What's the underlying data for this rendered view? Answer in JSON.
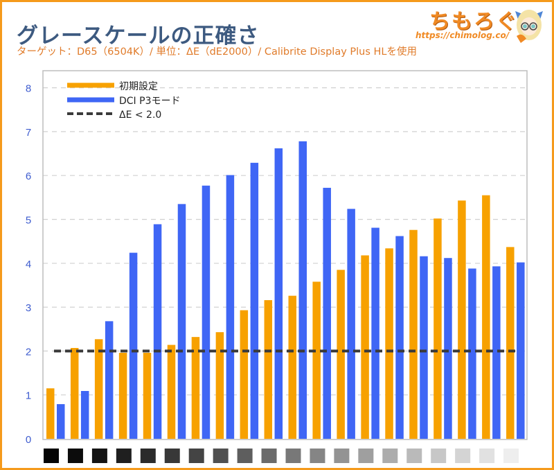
{
  "header": {
    "title": "グレースケールの正確さ",
    "subtitle": "ターゲット：D65（6504K）/ 単位：ΔE（dE2000）/ Calibrite Display Plus HLを使用"
  },
  "logo": {
    "text": "ちもろぐ",
    "url": "https://chimolog.co/"
  },
  "colors": {
    "series1": "#f7a100",
    "series2": "#3f66f5",
    "threshold": "#3a3a3a",
    "frame": "#f59a1b",
    "axis_text": "#3e5ccf"
  },
  "chart_data": {
    "type": "bar",
    "title": "グレースケールの正確さ",
    "subtitle": "ターゲット：D65（6504K）/ 単位：ΔE（dE2000）/ Calibrite Display Plus HLを使用",
    "xlabel": "",
    "ylabel": "",
    "ylim": [
      0,
      8
    ],
    "yticks": [
      0,
      1,
      2,
      3,
      4,
      5,
      6,
      7,
      8
    ],
    "grid": true,
    "legend_position": "top-left",
    "categories": [
      "0%",
      "5%",
      "10%",
      "15%",
      "20%",
      "25%",
      "30%",
      "35%",
      "40%",
      "45%",
      "50%",
      "55%",
      "60%",
      "65%",
      "70%",
      "75%",
      "80%",
      "85%",
      "90%",
      "95%"
    ],
    "category_swatches": [
      "#050505",
      "#0c0c0c",
      "#141414",
      "#1f1f1f",
      "#2b2b2b",
      "#383838",
      "#444444",
      "#505050",
      "#5e5e5e",
      "#6b6b6b",
      "#787878",
      "#858585",
      "#939393",
      "#9f9f9f",
      "#acacac",
      "#bababa",
      "#c7c7c7",
      "#d4d4d4",
      "#e1e1e1",
      "#eeeeee"
    ],
    "series": [
      {
        "name": "初期設定",
        "values": [
          1.15,
          2.07,
          2.27,
          1.96,
          1.96,
          2.14,
          2.32,
          2.43,
          2.93,
          3.16,
          3.26,
          3.58,
          3.85,
          4.18,
          4.34,
          4.76,
          5.02,
          5.43,
          5.55,
          4.37
        ]
      },
      {
        "name": "DCI P3モード",
        "values": [
          0.79,
          1.09,
          2.68,
          4.24,
          4.89,
          5.35,
          5.77,
          6.01,
          6.29,
          6.62,
          6.78,
          5.72,
          5.24,
          4.81,
          4.62,
          4.16,
          4.12,
          3.88,
          3.93,
          4.02
        ]
      }
    ],
    "threshold": {
      "name": "ΔE < 2.0",
      "value": 2.0,
      "style": "dashed"
    }
  }
}
